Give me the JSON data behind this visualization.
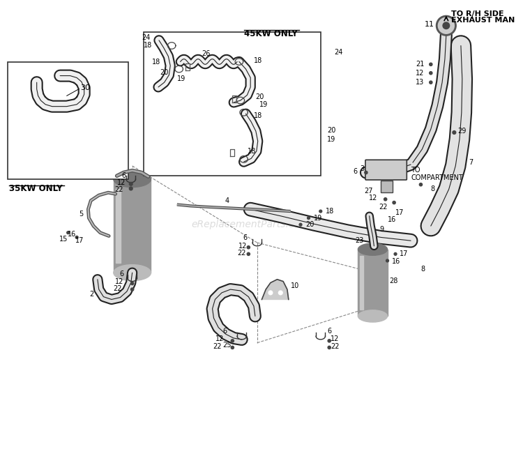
{
  "bg_color": "#ffffff",
  "line_color": "#000000",
  "watermark": "eReplacementParts.com",
  "label_35kw": "35KW ONLY",
  "label_45kw": "45KW ONLY",
  "label_to_rh_1": "TO R/H SIDE",
  "label_to_rh_2": "EXHAUST MAN",
  "label_compartment": "TO\nCOMPARTMENT"
}
